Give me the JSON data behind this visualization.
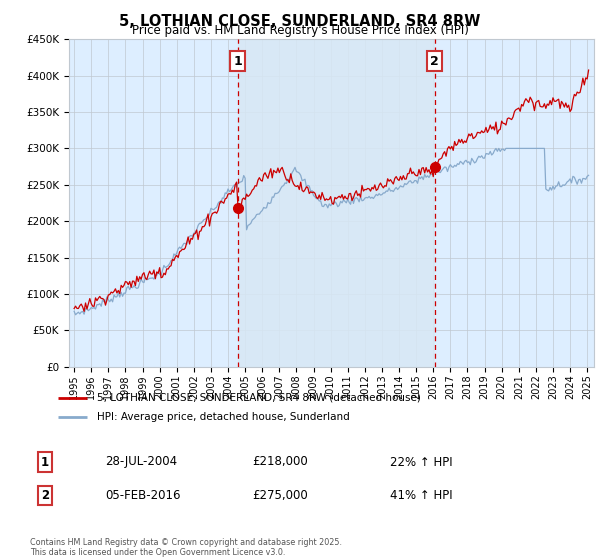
{
  "title": "5, LOTHIAN CLOSE, SUNDERLAND, SR4 8RW",
  "subtitle": "Price paid vs. HM Land Registry's House Price Index (HPI)",
  "legend_line1": "5, LOTHIAN CLOSE, SUNDERLAND, SR4 8RW (detached house)",
  "legend_line2": "HPI: Average price, detached house, Sunderland",
  "copyright": "Contains HM Land Registry data © Crown copyright and database right 2025.\nThis data is licensed under the Open Government Licence v3.0.",
  "sale1_label": "1",
  "sale1_date": "28-JUL-2004",
  "sale1_price": "£218,000",
  "sale1_hpi": "22% ↑ HPI",
  "sale1_year": 2004.575,
  "sale1_value": 218000,
  "sale2_label": "2",
  "sale2_date": "05-FEB-2016",
  "sale2_price": "£275,000",
  "sale2_hpi": "41% ↑ HPI",
  "sale2_year": 2016.09,
  "sale2_value": 275000,
  "ylim": [
    0,
    450000
  ],
  "yticks": [
    0,
    50000,
    100000,
    150000,
    200000,
    250000,
    300000,
    350000,
    400000,
    450000
  ],
  "ytick_labels": [
    "£0",
    "£50K",
    "£100K",
    "£150K",
    "£200K",
    "£250K",
    "£300K",
    "£350K",
    "£400K",
    "£450K"
  ],
  "red_color": "#cc0000",
  "blue_color": "#88aacc",
  "shade_color": "#d8e8f5",
  "bg_color": "#ddeeff",
  "grid_color": "#c0c8d0",
  "vline_color": "#cc0000",
  "box_edge_color": "#cc3333",
  "xtick_years": [
    1995,
    1996,
    1997,
    1998,
    1999,
    2000,
    2001,
    2002,
    2003,
    2004,
    2005,
    2006,
    2007,
    2008,
    2009,
    2010,
    2011,
    2012,
    2013,
    2014,
    2015,
    2016,
    2017,
    2018,
    2019,
    2020,
    2021,
    2022,
    2023,
    2024,
    2025
  ]
}
